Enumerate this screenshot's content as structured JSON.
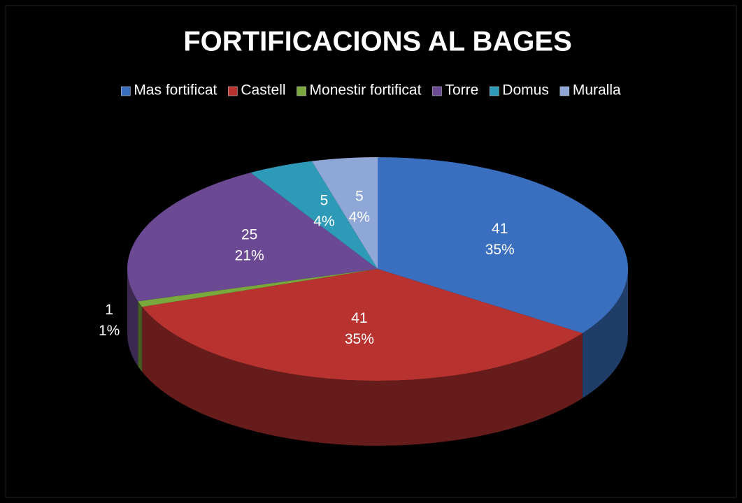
{
  "chart_data": {
    "type": "pie3d",
    "title": "FORTIFICACIONS AL BAGES",
    "categories": [
      "Mas fortificat",
      "Castell",
      "Monestir fortificat",
      "Torre",
      "Domus",
      "Muralla"
    ],
    "values": [
      41,
      41,
      1,
      25,
      5,
      5
    ],
    "percent_labels": [
      "35%",
      "35%",
      "1%",
      "21%",
      "4%",
      "4%"
    ],
    "colors": [
      "#3a6fbf",
      "#b83330",
      "#79a83c",
      "#6b4a93",
      "#2d9ab7",
      "#8ea7d6"
    ],
    "legend": "top"
  }
}
